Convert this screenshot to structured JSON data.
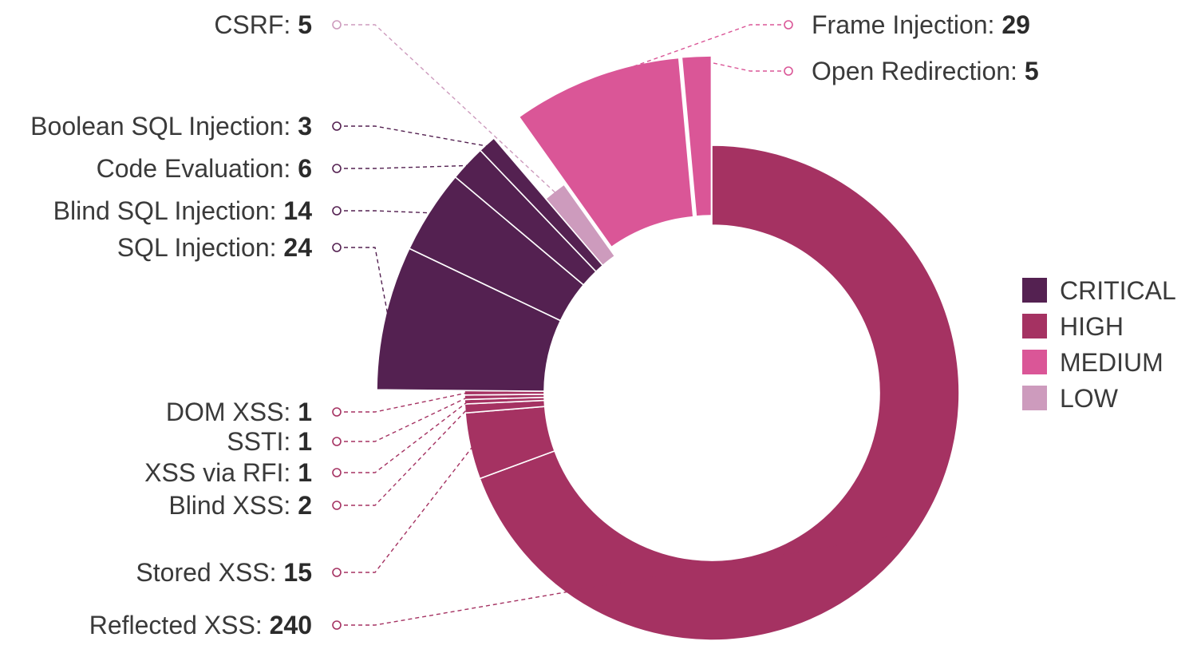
{
  "chart_data": {
    "type": "pie",
    "subtype": "donut-exploded",
    "title": "",
    "slices": [
      {
        "label": "Reflected XSS",
        "value": 240,
        "severity": "HIGH"
      },
      {
        "label": "Stored XSS",
        "value": 15,
        "severity": "HIGH"
      },
      {
        "label": "Blind XSS",
        "value": 2,
        "severity": "HIGH"
      },
      {
        "label": "XSS via RFI",
        "value": 1,
        "severity": "HIGH"
      },
      {
        "label": "SSTI",
        "value": 1,
        "severity": "HIGH"
      },
      {
        "label": "DOM XSS",
        "value": 1,
        "severity": "HIGH"
      },
      {
        "label": "SQL Injection",
        "value": 24,
        "severity": "CRITICAL"
      },
      {
        "label": "Blind SQL Injection",
        "value": 14,
        "severity": "CRITICAL"
      },
      {
        "label": "Code Evaluation",
        "value": 6,
        "severity": "CRITICAL"
      },
      {
        "label": "Boolean SQL Injection",
        "value": 3,
        "severity": "CRITICAL"
      },
      {
        "label": "CSRF",
        "value": 5,
        "severity": "LOW"
      },
      {
        "label": "Frame Injection",
        "value": 29,
        "severity": "MEDIUM"
      },
      {
        "label": "Open Redirection",
        "value": 5,
        "severity": "MEDIUM"
      }
    ],
    "legend": [
      {
        "label": "CRITICAL",
        "color": "#542151"
      },
      {
        "label": "HIGH",
        "color": "#a53262"
      },
      {
        "label": "MEDIUM",
        "color": "#da5697"
      },
      {
        "label": "LOW",
        "color": "#cd9bbd"
      }
    ],
    "legend_position": "right",
    "severity_colors": {
      "CRITICAL": "#542151",
      "HIGH": "#a53262",
      "MEDIUM": "#da5697",
      "LOW": "#cd9bbd"
    },
    "separator": ":"
  }
}
